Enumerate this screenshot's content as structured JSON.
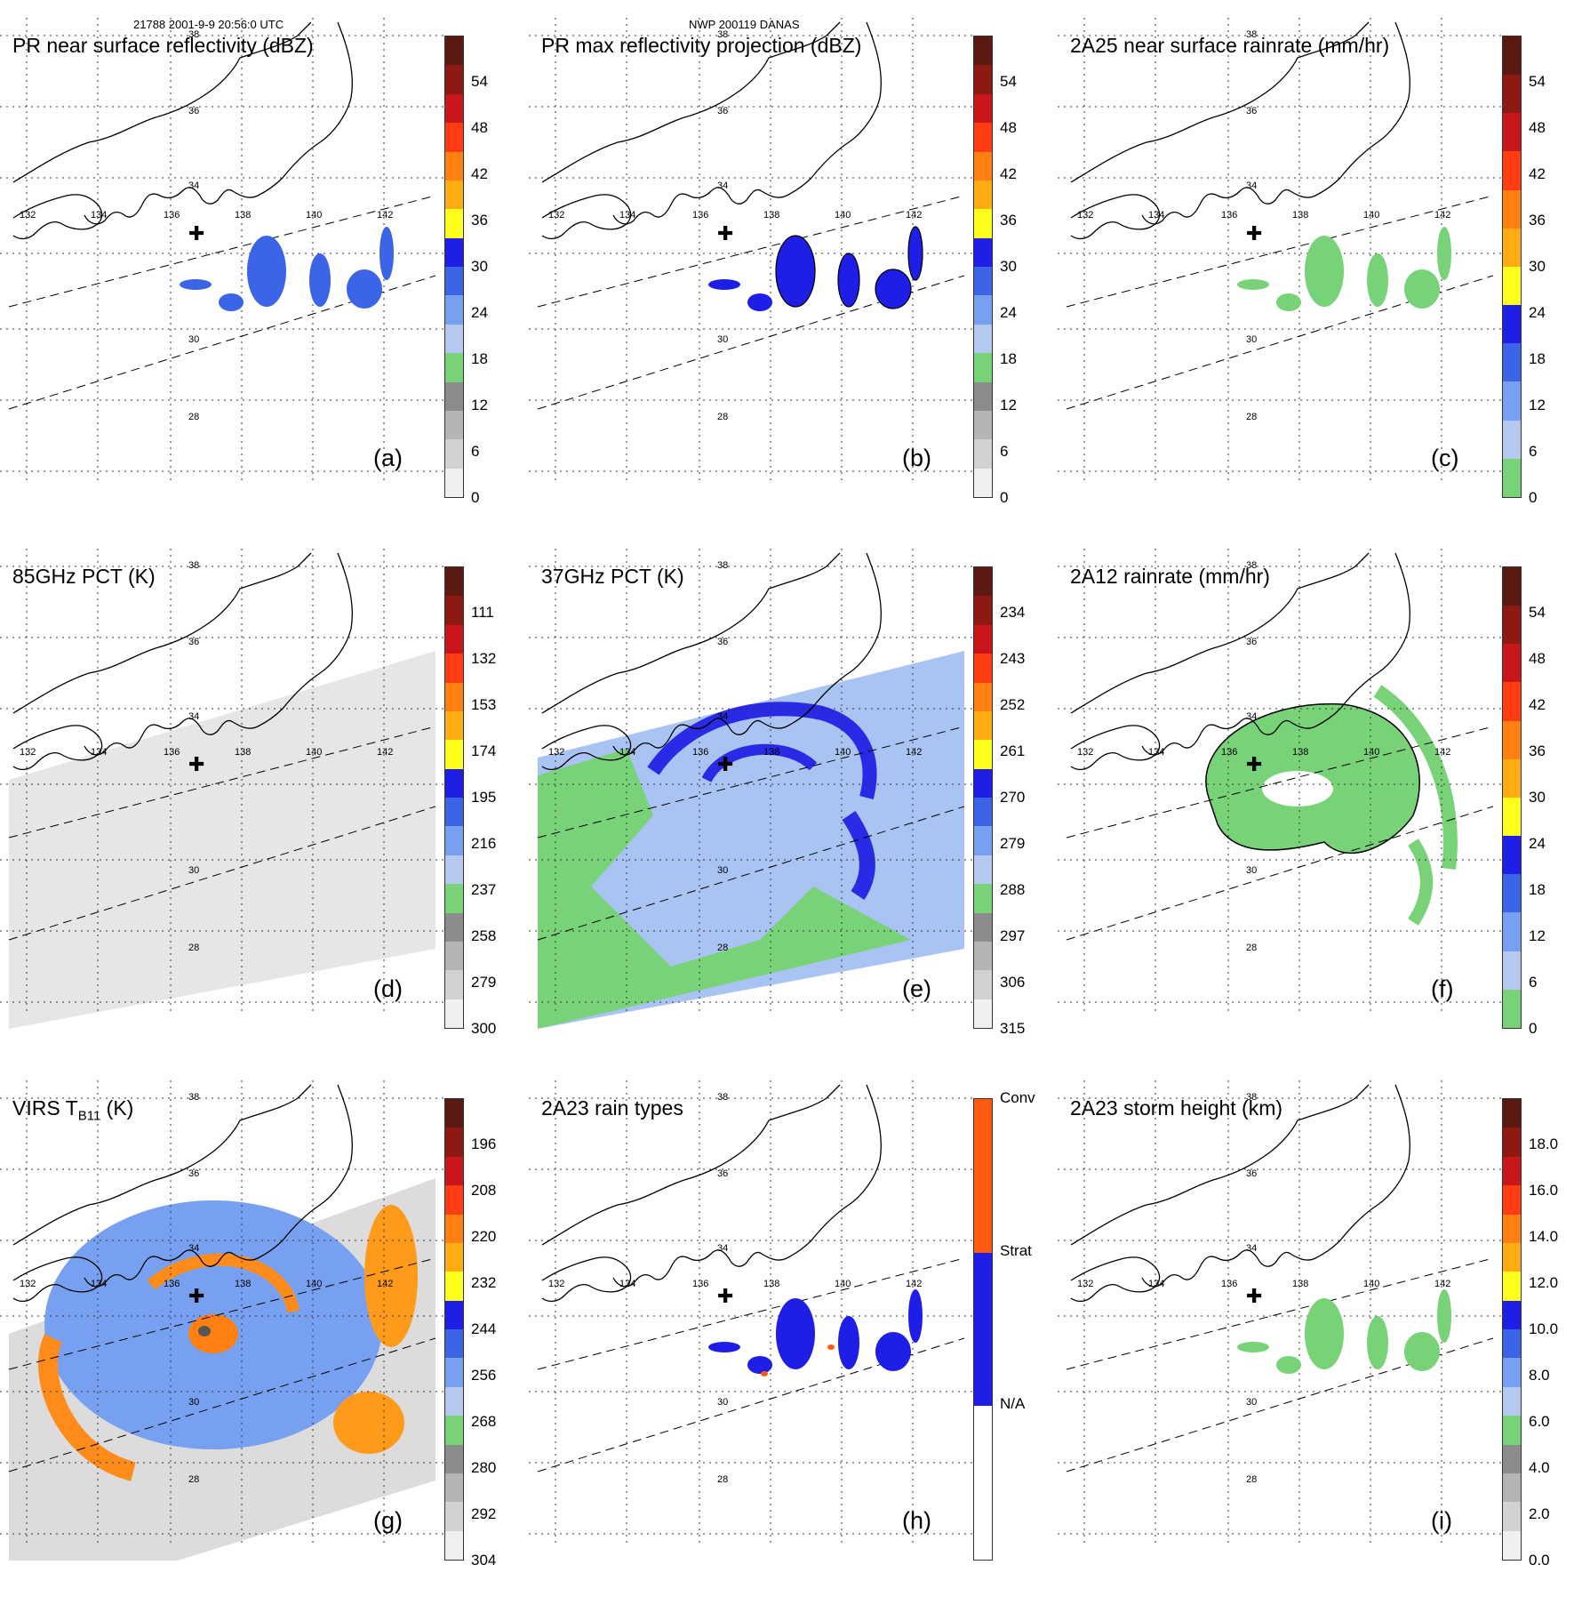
{
  "header": {
    "orbit_text": "21788 2001-9-9 20:56:0 UTC",
    "storm_text": "NWP 200119 DANAS"
  },
  "map": {
    "lon_labels": [
      "132",
      "134",
      "136",
      "138",
      "140",
      "142"
    ],
    "lat_labels": [
      "38",
      "36",
      "34",
      "30",
      "28"
    ],
    "center_marker": "plus-icon"
  },
  "panels": [
    {
      "id": "a",
      "title": "PR near surface reflectivity (dBZ)",
      "label": "(a)",
      "ticks": [
        "54",
        "48",
        "42",
        "36",
        "30",
        "24",
        "18",
        "12",
        "6",
        "0"
      ],
      "colors": [
        "#5a1a12",
        "#8c1a12",
        "#c8161a",
        "#ff3c12",
        "#ff7f12",
        "#ffab12",
        "#ffff1e",
        "#1e1ee6",
        "#3c64e6",
        "#78a0f0",
        "#b4c8f0",
        "#78d278",
        "#8c8c8c",
        "#b4b4b4",
        "#d2d2d2",
        "#f0f0f0"
      ]
    },
    {
      "id": "b",
      "title": "PR max reflectivity projection (dBZ)",
      "label": "(b)",
      "ticks": [
        "54",
        "48",
        "42",
        "36",
        "30",
        "24",
        "18",
        "12",
        "6",
        "0"
      ],
      "colors": [
        "#5a1a12",
        "#8c1a12",
        "#c8161a",
        "#ff3c12",
        "#ff7f12",
        "#ffab12",
        "#ffff1e",
        "#1e1ee6",
        "#3c64e6",
        "#78a0f0",
        "#b4c8f0",
        "#78d278",
        "#8c8c8c",
        "#b4b4b4",
        "#d2d2d2",
        "#f0f0f0"
      ]
    },
    {
      "id": "c",
      "title": "2A25 near surface rainrate (mm/hr)",
      "label": "(c)",
      "ticks": [
        "54",
        "48",
        "42",
        "36",
        "30",
        "24",
        "18",
        "12",
        "6",
        "0"
      ],
      "colors": [
        "#5a1a12",
        "#8c1a12",
        "#c8161a",
        "#ff3c12",
        "#ff7f12",
        "#ffab12",
        "#ffff1e",
        "#1e1ee6",
        "#3c64e6",
        "#78a0f0",
        "#b4c8f0",
        "#78d278"
      ]
    },
    {
      "id": "d",
      "title": "85GHz PCT (K)",
      "label": "(d)",
      "ticks": [
        "111",
        "132",
        "153",
        "174",
        "195",
        "216",
        "237",
        "258",
        "279",
        "300"
      ],
      "colors": [
        "#5a1a12",
        "#8c1a12",
        "#c8161a",
        "#ff3c12",
        "#ff7f12",
        "#ffab12",
        "#ffff1e",
        "#1e1ee6",
        "#3c64e6",
        "#78a0f0",
        "#b4c8f0",
        "#78d278",
        "#8c8c8c",
        "#b4b4b4",
        "#d2d2d2",
        "#f0f0f0"
      ]
    },
    {
      "id": "e",
      "title": "37GHz PCT (K)",
      "label": "(e)",
      "ticks": [
        "234",
        "243",
        "252",
        "261",
        "270",
        "279",
        "288",
        "297",
        "306",
        "315"
      ],
      "colors": [
        "#5a1a12",
        "#8c1a12",
        "#c8161a",
        "#ff3c12",
        "#ff7f12",
        "#ffab12",
        "#ffff1e",
        "#1e1ee6",
        "#3c64e6",
        "#78a0f0",
        "#b4c8f0",
        "#78d278",
        "#8c8c8c",
        "#b4b4b4",
        "#d2d2d2",
        "#f0f0f0"
      ]
    },
    {
      "id": "f",
      "title": "2A12 rainrate (mm/hr)",
      "label": "(f)",
      "ticks": [
        "54",
        "48",
        "42",
        "36",
        "30",
        "24",
        "18",
        "12",
        "6",
        "0"
      ],
      "colors": [
        "#5a1a12",
        "#8c1a12",
        "#c8161a",
        "#ff3c12",
        "#ff7f12",
        "#ffab12",
        "#ffff1e",
        "#1e1ee6",
        "#3c64e6",
        "#78a0f0",
        "#b4c8f0",
        "#78d278"
      ]
    },
    {
      "id": "g",
      "title": "VIRS T",
      "title_sub": "B11",
      "title_tail": " (K)",
      "label": "(g)",
      "ticks": [
        "196",
        "208",
        "220",
        "232",
        "244",
        "256",
        "268",
        "280",
        "292",
        "304"
      ],
      "colors": [
        "#5a1a12",
        "#8c1a12",
        "#c8161a",
        "#ff3c12",
        "#ff7f12",
        "#ffab12",
        "#ffff1e",
        "#1e1ee6",
        "#3c64e6",
        "#78a0f0",
        "#b4c8f0",
        "#78d278",
        "#8c8c8c",
        "#b4b4b4",
        "#d2d2d2",
        "#f0f0f0"
      ]
    },
    {
      "id": "h",
      "title": "2A23 rain types",
      "label": "(h)",
      "ticks": [
        "Conv",
        "Strat",
        "N/A"
      ],
      "colors": [
        "#ff5a12",
        "#1e1ee6",
        "#ffffff"
      ]
    },
    {
      "id": "i",
      "title": "2A23 storm height (km)",
      "label": "(i)",
      "ticks": [
        "18.0",
        "16.0",
        "14.0",
        "12.0",
        "10.0",
        "8.0",
        "6.0",
        "4.0",
        "2.0",
        "0.0"
      ],
      "colors": [
        "#5a1a12",
        "#8c1a12",
        "#c8161a",
        "#ff3c12",
        "#ff7f12",
        "#ffab12",
        "#ffff1e",
        "#1e1ee6",
        "#3c64e6",
        "#78a0f0",
        "#b4c8f0",
        "#78d278",
        "#8c8c8c",
        "#b4b4b4",
        "#d2d2d2",
        "#f0f0f0"
      ]
    }
  ]
}
